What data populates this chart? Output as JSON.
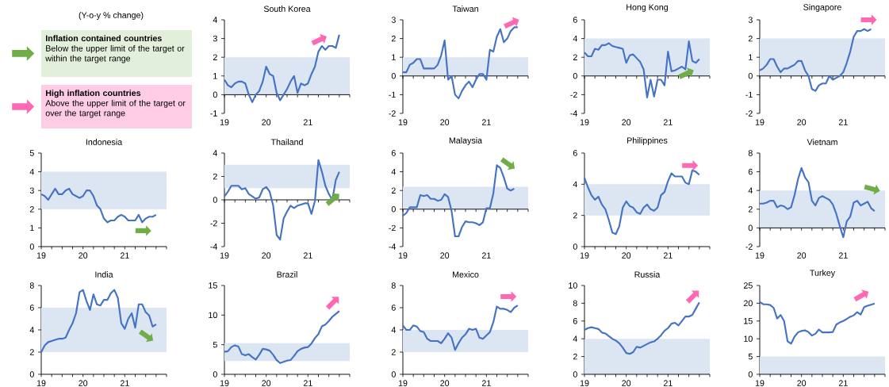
{
  "chart_data": [
    {
      "type": "other",
      "annotations": [
        "(Y-o-y % change)",
        "Inflation contained countries",
        "Below the upper limit of the target or within the target range",
        "High inflation countries",
        "Above the upper limit of the target or over the target range"
      ]
    },
    {
      "type": "line",
      "title": "South Korea",
      "color": "#4472c4",
      "x": [
        "2019-01",
        "2019-02",
        "2019-03",
        "2019-04",
        "2019-05",
        "2019-06",
        "2019-07",
        "2019-08",
        "2019-09",
        "2019-10",
        "2019-11",
        "2019-12",
        "2020-01",
        "2020-02",
        "2020-03",
        "2020-04",
        "2020-05",
        "2020-06",
        "2020-07",
        "2020-08",
        "2020-09",
        "2020-10",
        "2020-11",
        "2020-12",
        "2021-01",
        "2021-02",
        "2021-03",
        "2021-04",
        "2021-05",
        "2021-06",
        "2021-07",
        "2021-08",
        "2021-09",
        "2021-10"
      ],
      "values": [
        0.8,
        0.5,
        0.4,
        0.6,
        0.7,
        0.7,
        0.6,
        0.0,
        -0.4,
        0.0,
        0.2,
        0.7,
        1.5,
        1.1,
        1.0,
        0.1,
        -0.3,
        0.0,
        0.3,
        0.7,
        1.0,
        0.1,
        0.6,
        0.5,
        0.6,
        1.1,
        1.5,
        2.3,
        2.6,
        2.4,
        2.6,
        2.6,
        2.5,
        3.2
      ],
      "xlim": [
        "2019-01",
        "2022-01"
      ],
      "xticks": [
        {
          "value": "2019-01",
          "label": "19"
        },
        {
          "value": "2019-04",
          "label": null
        },
        {
          "value": "2019-07",
          "label": null
        },
        {
          "value": "2019-10",
          "label": null
        },
        {
          "value": "2020-01",
          "label": "20"
        },
        {
          "value": "2020-04",
          "label": null
        },
        {
          "value": "2020-07",
          "label": null
        },
        {
          "value": "2020-10",
          "label": null
        },
        {
          "value": "2021-01",
          "label": "21"
        },
        {
          "value": "2021-04",
          "label": null
        },
        {
          "value": "2021-07",
          "label": null
        },
        {
          "value": "2021-10",
          "label": null
        },
        {
          "value": "2022-01",
          "label": null
        }
      ],
      "ylim": [
        -1,
        4
      ],
      "yticks": [
        -1,
        0,
        1,
        2,
        3,
        4
      ],
      "bands": [
        {
          "axis": "y",
          "from": 0,
          "to": 2,
          "color": "#dce6f2"
        }
      ]
    },
    {
      "type": "line",
      "title": "Taiwan",
      "color": "#4472c4",
      "x": [
        "2019-01",
        "2019-02",
        "2019-03",
        "2019-04",
        "2019-05",
        "2019-06",
        "2019-07",
        "2019-08",
        "2019-09",
        "2019-10",
        "2019-11",
        "2019-12",
        "2020-01",
        "2020-02",
        "2020-03",
        "2020-04",
        "2020-05",
        "2020-06",
        "2020-07",
        "2020-08",
        "2020-09",
        "2020-10",
        "2020-11",
        "2020-12",
        "2021-01",
        "2021-02",
        "2021-03",
        "2021-04",
        "2021-05",
        "2021-06",
        "2021-07",
        "2021-08",
        "2021-09",
        "2021-10"
      ],
      "values": [
        0.2,
        0.2,
        0.6,
        0.7,
        0.9,
        0.9,
        0.4,
        0.4,
        0.4,
        0.4,
        0.6,
        1.1,
        1.9,
        -0.2,
        0.0,
        -1.0,
        -1.2,
        -0.8,
        -0.5,
        -0.3,
        -0.6,
        -0.2,
        0.1,
        0.1,
        -0.2,
        1.4,
        1.3,
        2.1,
        2.5,
        1.8,
        2.0,
        2.4,
        2.6,
        2.6
      ],
      "xlim": [
        "2019-01",
        "2022-01"
      ],
      "xticks": [
        {
          "value": "2019-01",
          "label": "19"
        },
        {
          "value": "2019-04",
          "label": null
        },
        {
          "value": "2019-07",
          "label": null
        },
        {
          "value": "2019-10",
          "label": null
        },
        {
          "value": "2020-01",
          "label": "20"
        },
        {
          "value": "2020-04",
          "label": null
        },
        {
          "value": "2020-07",
          "label": null
        },
        {
          "value": "2020-10",
          "label": null
        },
        {
          "value": "2021-01",
          "label": "21"
        },
        {
          "value": "2021-04",
          "label": null
        },
        {
          "value": "2021-07",
          "label": null
        },
        {
          "value": "2021-10",
          "label": null
        },
        {
          "value": "2022-01",
          "label": null
        }
      ],
      "ylim": [
        -2,
        3
      ],
      "yticks": [
        -2,
        -1,
        0,
        1,
        2,
        3
      ],
      "bands": [
        {
          "axis": "y",
          "from": 0,
          "to": 1,
          "color": "#dce6f2"
        }
      ]
    },
    {
      "type": "line",
      "title": "Hong Kong",
      "color": "#4472c4",
      "x": [
        "2019-01",
        "2019-02",
        "2019-03",
        "2019-04",
        "2019-05",
        "2019-06",
        "2019-07",
        "2019-08",
        "2019-09",
        "2019-10",
        "2019-11",
        "2019-12",
        "2020-01",
        "2020-02",
        "2020-03",
        "2020-04",
        "2020-05",
        "2020-06",
        "2020-07",
        "2020-08",
        "2020-09",
        "2020-10",
        "2020-11",
        "2020-12",
        "2021-01",
        "2021-02",
        "2021-03",
        "2021-04",
        "2021-05",
        "2021-06",
        "2021-07",
        "2021-08",
        "2021-09",
        "2021-10"
      ],
      "values": [
        2.5,
        2.1,
        2.1,
        2.9,
        2.8,
        3.3,
        3.3,
        3.5,
        3.2,
        3.1,
        3.0,
        2.9,
        1.4,
        2.2,
        2.3,
        1.9,
        1.5,
        0.7,
        -2.3,
        -0.4,
        -2.2,
        -0.4,
        -0.4,
        -1.0,
        2.6,
        0.5,
        0.6,
        0.8,
        1.0,
        0.7,
        3.7,
        1.6,
        1.4,
        1.8
      ],
      "xlim": [
        "2019-01",
        "2022-01"
      ],
      "xticks": [
        {
          "value": "2019-01",
          "label": "19"
        },
        {
          "value": "2019-04",
          "label": null
        },
        {
          "value": "2019-07",
          "label": null
        },
        {
          "value": "2019-10",
          "label": null
        },
        {
          "value": "2020-01",
          "label": "20"
        },
        {
          "value": "2020-04",
          "label": null
        },
        {
          "value": "2020-07",
          "label": null
        },
        {
          "value": "2020-10",
          "label": null
        },
        {
          "value": "2021-01",
          "label": "21"
        },
        {
          "value": "2021-04",
          "label": null
        },
        {
          "value": "2021-07",
          "label": null
        },
        {
          "value": "2021-10",
          "label": null
        },
        {
          "value": "2022-01",
          "label": null
        }
      ],
      "ylim": [
        -4,
        6
      ],
      "yticks": [
        -4,
        -2,
        0,
        2,
        4,
        6
      ],
      "bands": [
        {
          "axis": "y",
          "from": 0,
          "to": 4,
          "color": "#dce6f2"
        }
      ]
    },
    {
      "type": "line",
      "title": "Singapore",
      "color": "#4472c4",
      "x": [
        "2019-01",
        "2019-02",
        "2019-03",
        "2019-04",
        "2019-05",
        "2019-06",
        "2019-07",
        "2019-08",
        "2019-09",
        "2019-10",
        "2019-11",
        "2019-12",
        "2020-01",
        "2020-02",
        "2020-03",
        "2020-04",
        "2020-05",
        "2020-06",
        "2020-07",
        "2020-08",
        "2020-09",
        "2020-10",
        "2020-11",
        "2020-12",
        "2021-01",
        "2021-02",
        "2021-03",
        "2021-04",
        "2021-05",
        "2021-06",
        "2021-07",
        "2021-08",
        "2021-09"
      ],
      "values": [
        0.3,
        0.4,
        0.6,
        0.9,
        0.9,
        0.5,
        0.2,
        0.4,
        0.4,
        0.5,
        0.6,
        0.8,
        0.8,
        0.3,
        0.0,
        -0.7,
        -0.8,
        -0.5,
        -0.4,
        -0.4,
        0.0,
        -0.2,
        -0.1,
        0.0,
        0.2,
        0.7,
        1.3,
        2.1,
        2.4,
        2.4,
        2.5,
        2.4,
        2.5
      ],
      "xlim": [
        "2019-01",
        "2022-01"
      ],
      "xticks": [
        {
          "value": "2019-01",
          "label": "19"
        },
        {
          "value": "2019-04",
          "label": null
        },
        {
          "value": "2019-07",
          "label": null
        },
        {
          "value": "2019-10",
          "label": null
        },
        {
          "value": "2020-01",
          "label": "20"
        },
        {
          "value": "2020-04",
          "label": null
        },
        {
          "value": "2020-07",
          "label": null
        },
        {
          "value": "2020-10",
          "label": null
        },
        {
          "value": "2021-01",
          "label": "21"
        },
        {
          "value": "2021-04",
          "label": null
        },
        {
          "value": "2021-07",
          "label": null
        },
        {
          "value": "2021-10",
          "label": null
        },
        {
          "value": "2022-01",
          "label": null
        }
      ],
      "ylim": [
        -2,
        3
      ],
      "yticks": [
        -2,
        -1,
        0,
        1,
        2,
        3
      ],
      "bands": [
        {
          "axis": "y",
          "from": 0,
          "to": 2,
          "color": "#dce6f2"
        }
      ]
    },
    {
      "type": "line",
      "title": "Indonesia",
      "color": "#4472c4",
      "x": [
        "2019-01",
        "2019-02",
        "2019-03",
        "2019-04",
        "2019-05",
        "2019-06",
        "2019-07",
        "2019-08",
        "2019-09",
        "2019-10",
        "2019-11",
        "2019-12",
        "2020-01",
        "2020-02",
        "2020-03",
        "2020-04",
        "2020-05",
        "2020-06",
        "2020-07",
        "2020-08",
        "2020-09",
        "2020-10",
        "2020-11",
        "2020-12",
        "2021-01",
        "2021-02",
        "2021-03",
        "2021-04",
        "2021-05",
        "2021-06",
        "2021-07",
        "2021-08",
        "2021-09",
        "2021-10"
      ],
      "values": [
        2.8,
        2.7,
        2.5,
        2.8,
        3.1,
        2.8,
        2.8,
        3.0,
        3.1,
        2.8,
        2.7,
        2.6,
        2.7,
        3.0,
        3.0,
        2.7,
        2.2,
        2.0,
        1.5,
        1.3,
        1.4,
        1.4,
        1.6,
        1.7,
        1.6,
        1.4,
        1.4,
        1.4,
        1.7,
        1.3,
        1.5,
        1.6,
        1.6,
        1.7
      ],
      "xlim": [
        "2019-01",
        "2022-01"
      ],
      "xticks": [
        {
          "value": "2019-01",
          "label": "19"
        },
        {
          "value": "2019-04",
          "label": null
        },
        {
          "value": "2019-07",
          "label": null
        },
        {
          "value": "2019-10",
          "label": null
        },
        {
          "value": "2020-01",
          "label": "20"
        },
        {
          "value": "2020-04",
          "label": null
        },
        {
          "value": "2020-07",
          "label": null
        },
        {
          "value": "2020-10",
          "label": null
        },
        {
          "value": "2021-01",
          "label": "21"
        },
        {
          "value": "2021-04",
          "label": null
        },
        {
          "value": "2021-07",
          "label": null
        },
        {
          "value": "2021-10",
          "label": null
        },
        {
          "value": "2022-01",
          "label": null
        }
      ],
      "ylim": [
        0,
        5
      ],
      "yticks": [
        0,
        1,
        2,
        3,
        4,
        5
      ],
      "bands": [
        {
          "axis": "y",
          "from": 2,
          "to": 4,
          "color": "#dce6f2"
        }
      ]
    },
    {
      "type": "line",
      "title": "Thailand",
      "color": "#4472c4",
      "x": [
        "2019-01",
        "2019-02",
        "2019-03",
        "2019-04",
        "2019-05",
        "2019-06",
        "2019-07",
        "2019-08",
        "2019-09",
        "2019-10",
        "2019-11",
        "2019-12",
        "2020-01",
        "2020-02",
        "2020-03",
        "2020-04",
        "2020-05",
        "2020-06",
        "2020-07",
        "2020-08",
        "2020-09",
        "2020-10",
        "2020-11",
        "2020-12",
        "2021-01",
        "2021-02",
        "2021-03",
        "2021-04",
        "2021-05",
        "2021-06",
        "2021-07",
        "2021-08",
        "2021-09",
        "2021-10"
      ],
      "values": [
        0.3,
        0.7,
        1.2,
        1.2,
        1.2,
        0.9,
        1.0,
        0.5,
        0.3,
        0.1,
        0.2,
        0.9,
        1.1,
        0.7,
        -0.5,
        -3.0,
        -3.4,
        -1.6,
        -1.0,
        -0.5,
        -0.7,
        -0.5,
        -0.4,
        -0.3,
        -0.3,
        -1.2,
        -0.1,
        3.4,
        2.4,
        1.2,
        0.5,
        0.0,
        1.7,
        2.4
      ],
      "xlim": [
        "2019-01",
        "2022-01"
      ],
      "xticks": [
        {
          "value": "2019-01",
          "label": "19"
        },
        {
          "value": "2019-04",
          "label": null
        },
        {
          "value": "2019-07",
          "label": null
        },
        {
          "value": "2019-10",
          "label": null
        },
        {
          "value": "2020-01",
          "label": "20"
        },
        {
          "value": "2020-04",
          "label": null
        },
        {
          "value": "2020-07",
          "label": null
        },
        {
          "value": "2020-10",
          "label": null
        },
        {
          "value": "2021-01",
          "label": "21"
        },
        {
          "value": "2021-04",
          "label": null
        },
        {
          "value": "2021-07",
          "label": null
        },
        {
          "value": "2021-10",
          "label": null
        },
        {
          "value": "2022-01",
          "label": null
        }
      ],
      "ylim": [
        -4,
        4
      ],
      "yticks": [
        -4,
        -2,
        0,
        2,
        4
      ],
      "bands": [
        {
          "axis": "y",
          "from": 1,
          "to": 3,
          "color": "#dce6f2"
        }
      ]
    },
    {
      "type": "line",
      "title": "Malaysia",
      "color": "#4472c4",
      "x": [
        "2019-01",
        "2019-02",
        "2019-03",
        "2019-04",
        "2019-05",
        "2019-06",
        "2019-07",
        "2019-08",
        "2019-09",
        "2019-10",
        "2019-11",
        "2019-12",
        "2020-01",
        "2020-02",
        "2020-03",
        "2020-04",
        "2020-05",
        "2020-06",
        "2020-07",
        "2020-08",
        "2020-09",
        "2020-10",
        "2020-11",
        "2020-12",
        "2021-01",
        "2021-02",
        "2021-03",
        "2021-04",
        "2021-05",
        "2021-06",
        "2021-07",
        "2021-08",
        "2021-09"
      ],
      "values": [
        -0.7,
        -0.4,
        0.2,
        0.2,
        0.2,
        1.5,
        1.4,
        1.5,
        1.1,
        1.1,
        0.9,
        1.0,
        1.6,
        1.3,
        -0.2,
        -2.9,
        -2.9,
        -1.9,
        -1.3,
        -1.4,
        -1.4,
        -1.5,
        -1.7,
        -1.4,
        0.1,
        0.1,
        1.7,
        4.7,
        4.4,
        3.4,
        2.2,
        2.0,
        2.2
      ],
      "xlim": [
        "2019-01",
        "2022-01"
      ],
      "xticks": [
        {
          "value": "2019-01",
          "label": "19"
        },
        {
          "value": "2019-04",
          "label": null
        },
        {
          "value": "2019-07",
          "label": null
        },
        {
          "value": "2019-10",
          "label": null
        },
        {
          "value": "2020-01",
          "label": "20"
        },
        {
          "value": "2020-04",
          "label": null
        },
        {
          "value": "2020-07",
          "label": null
        },
        {
          "value": "2020-10",
          "label": null
        },
        {
          "value": "2021-01",
          "label": "21"
        },
        {
          "value": "2021-04",
          "label": null
        },
        {
          "value": "2021-07",
          "label": null
        },
        {
          "value": "2021-10",
          "label": null
        },
        {
          "value": "2022-01",
          "label": null
        }
      ],
      "ylim": [
        -4,
        6
      ],
      "yticks": [
        -4,
        -2,
        0,
        2,
        4,
        6
      ],
      "bands": [
        {
          "axis": "y",
          "from": 0,
          "to": 2.4,
          "color": "#dce6f2"
        }
      ]
    },
    {
      "type": "line",
      "title": "Philippines",
      "color": "#4472c4",
      "x": [
        "2019-01",
        "2019-02",
        "2019-03",
        "2019-04",
        "2019-05",
        "2019-06",
        "2019-07",
        "2019-08",
        "2019-09",
        "2019-10",
        "2019-11",
        "2019-12",
        "2020-01",
        "2020-02",
        "2020-03",
        "2020-04",
        "2020-05",
        "2020-06",
        "2020-07",
        "2020-08",
        "2020-09",
        "2020-10",
        "2020-11",
        "2020-12",
        "2021-01",
        "2021-02",
        "2021-03",
        "2021-04",
        "2021-05",
        "2021-06",
        "2021-07",
        "2021-08",
        "2021-09",
        "2021-10"
      ],
      "values": [
        4.4,
        3.8,
        3.3,
        3.0,
        3.2,
        2.7,
        2.4,
        1.7,
        0.9,
        0.8,
        1.3,
        2.5,
        2.9,
        2.6,
        2.5,
        2.2,
        2.1,
        2.5,
        2.7,
        2.4,
        2.3,
        2.5,
        3.3,
        3.5,
        4.2,
        4.7,
        4.5,
        4.5,
        4.5,
        4.1,
        4.0,
        4.9,
        4.8,
        4.6
      ],
      "xlim": [
        "2019-01",
        "2022-01"
      ],
      "xticks": [
        {
          "value": "2019-01",
          "label": "19"
        },
        {
          "value": "2019-04",
          "label": null
        },
        {
          "value": "2019-07",
          "label": null
        },
        {
          "value": "2019-10",
          "label": null
        },
        {
          "value": "2020-01",
          "label": "20"
        },
        {
          "value": "2020-04",
          "label": null
        },
        {
          "value": "2020-07",
          "label": null
        },
        {
          "value": "2020-10",
          "label": null
        },
        {
          "value": "2021-01",
          "label": "21"
        },
        {
          "value": "2021-04",
          "label": null
        },
        {
          "value": "2021-07",
          "label": null
        },
        {
          "value": "2021-10",
          "label": null
        },
        {
          "value": "2022-01",
          "label": null
        }
      ],
      "ylim": [
        0,
        6
      ],
      "yticks": [
        0,
        2,
        4,
        6
      ],
      "bands": [
        {
          "axis": "y",
          "from": 2,
          "to": 4,
          "color": "#dce6f2"
        }
      ]
    },
    {
      "type": "line",
      "title": "Vietnam",
      "color": "#4472c4",
      "x": [
        "2019-01",
        "2019-02",
        "2019-03",
        "2019-04",
        "2019-05",
        "2019-06",
        "2019-07",
        "2019-08",
        "2019-09",
        "2019-10",
        "2019-11",
        "2019-12",
        "2020-01",
        "2020-02",
        "2020-03",
        "2020-04",
        "2020-05",
        "2020-06",
        "2020-07",
        "2020-08",
        "2020-09",
        "2020-10",
        "2020-11",
        "2020-12",
        "2021-01",
        "2021-02",
        "2021-03",
        "2021-04",
        "2021-05",
        "2021-06",
        "2021-07",
        "2021-08",
        "2021-09",
        "2021-10"
      ],
      "values": [
        2.6,
        2.6,
        2.7,
        2.9,
        2.9,
        2.2,
        2.4,
        2.3,
        2.0,
        2.2,
        3.5,
        5.2,
        6.4,
        5.4,
        4.9,
        2.9,
        2.4,
        3.2,
        3.4,
        3.2,
        3.0,
        2.5,
        1.5,
        0.2,
        -1.0,
        0.7,
        1.2,
        2.7,
        2.9,
        2.4,
        2.6,
        2.8,
        2.1,
        1.8
      ],
      "xlim": [
        "2019-01",
        "2022-01"
      ],
      "xticks": [
        {
          "value": "2019-01",
          "label": "19"
        },
        {
          "value": "2019-04",
          "label": null
        },
        {
          "value": "2019-07",
          "label": null
        },
        {
          "value": "2019-10",
          "label": null
        },
        {
          "value": "2020-01",
          "label": "20"
        },
        {
          "value": "2020-04",
          "label": null
        },
        {
          "value": "2020-07",
          "label": null
        },
        {
          "value": "2020-10",
          "label": null
        },
        {
          "value": "2021-01",
          "label": "21"
        },
        {
          "value": "2021-04",
          "label": null
        },
        {
          "value": "2021-07",
          "label": null
        },
        {
          "value": "2021-10",
          "label": null
        },
        {
          "value": "2022-01",
          "label": null
        }
      ],
      "ylim": [
        -2,
        8
      ],
      "yticks": [
        -2,
        0,
        2,
        4,
        6,
        8
      ],
      "bands": [
        {
          "axis": "y",
          "from": 0,
          "to": 4,
          "color": "#dce6f2"
        }
      ]
    },
    {
      "type": "line",
      "title": "India",
      "color": "#4472c4",
      "x": [
        "2019-01",
        "2019-02",
        "2019-03",
        "2019-04",
        "2019-05",
        "2019-06",
        "2019-07",
        "2019-08",
        "2019-09",
        "2019-10",
        "2019-11",
        "2019-12",
        "2020-01",
        "2020-02",
        "2020-03",
        "2020-04",
        "2020-05",
        "2020-06",
        "2020-07",
        "2020-08",
        "2020-09",
        "2020-10",
        "2020-11",
        "2020-12",
        "2021-01",
        "2021-02",
        "2021-03",
        "2021-04",
        "2021-05",
        "2021-06",
        "2021-07",
        "2021-08",
        "2021-09",
        "2021-10"
      ],
      "values": [
        2.0,
        2.6,
        2.9,
        3.0,
        3.1,
        3.2,
        3.2,
        3.3,
        4.0,
        4.6,
        5.5,
        7.4,
        7.6,
        6.6,
        5.8,
        7.2,
        6.3,
        6.2,
        6.7,
        6.7,
        7.3,
        7.6,
        6.9,
        4.6,
        4.1,
        5.0,
        5.5,
        4.2,
        6.3,
        6.3,
        5.6,
        5.3,
        4.3,
        4.5
      ],
      "xlim": [
        "2019-01",
        "2022-01"
      ],
      "xticks": [
        {
          "value": "2019-01",
          "label": "19"
        },
        {
          "value": "2019-04",
          "label": null
        },
        {
          "value": "2019-07",
          "label": null
        },
        {
          "value": "2019-10",
          "label": null
        },
        {
          "value": "2020-01",
          "label": "20"
        },
        {
          "value": "2020-04",
          "label": null
        },
        {
          "value": "2020-07",
          "label": null
        },
        {
          "value": "2020-10",
          "label": null
        },
        {
          "value": "2021-01",
          "label": "21"
        },
        {
          "value": "2021-04",
          "label": null
        },
        {
          "value": "2021-07",
          "label": null
        },
        {
          "value": "2021-10",
          "label": null
        },
        {
          "value": "2022-01",
          "label": null
        }
      ],
      "ylim": [
        0,
        8
      ],
      "yticks": [
        0,
        2,
        4,
        6,
        8
      ],
      "bands": [
        {
          "axis": "y",
          "from": 2,
          "to": 6,
          "color": "#dce6f2"
        }
      ]
    },
    {
      "type": "line",
      "title": "Brazil",
      "color": "#4472c4",
      "x": [
        "2019-01",
        "2019-02",
        "2019-03",
        "2019-04",
        "2019-05",
        "2019-06",
        "2019-07",
        "2019-08",
        "2019-09",
        "2019-10",
        "2019-11",
        "2019-12",
        "2020-01",
        "2020-02",
        "2020-03",
        "2020-04",
        "2020-05",
        "2020-06",
        "2020-07",
        "2020-08",
        "2020-09",
        "2020-10",
        "2020-11",
        "2020-12",
        "2021-01",
        "2021-02",
        "2021-03",
        "2021-04",
        "2021-05",
        "2021-06",
        "2021-07",
        "2021-08",
        "2021-09",
        "2021-10"
      ],
      "values": [
        3.8,
        3.9,
        4.6,
        4.9,
        4.7,
        3.4,
        3.2,
        3.4,
        2.9,
        2.5,
        3.3,
        4.3,
        4.2,
        4.0,
        3.3,
        2.4,
        1.9,
        2.1,
        2.3,
        2.4,
        3.1,
        3.9,
        4.3,
        4.5,
        4.6,
        5.2,
        6.1,
        6.8,
        8.1,
        8.4,
        9.0,
        9.7,
        10.2,
        10.7
      ],
      "xlim": [
        "2019-01",
        "2022-01"
      ],
      "xticks": [
        {
          "value": "2019-01",
          "label": "19"
        },
        {
          "value": "2019-04",
          "label": null
        },
        {
          "value": "2019-07",
          "label": null
        },
        {
          "value": "2019-10",
          "label": null
        },
        {
          "value": "2020-01",
          "label": "20"
        },
        {
          "value": "2020-04",
          "label": null
        },
        {
          "value": "2020-07",
          "label": null
        },
        {
          "value": "2020-10",
          "label": null
        },
        {
          "value": "2021-01",
          "label": "21"
        },
        {
          "value": "2021-04",
          "label": null
        },
        {
          "value": "2021-07",
          "label": null
        },
        {
          "value": "2021-10",
          "label": null
        },
        {
          "value": "2022-01",
          "label": null
        }
      ],
      "ylim": [
        0,
        15
      ],
      "yticks": [
        0,
        5,
        10,
        15
      ],
      "bands": [
        {
          "axis": "y",
          "from": 2.25,
          "to": 5.25,
          "color": "#dce6f2"
        }
      ]
    },
    {
      "type": "line",
      "title": "Mexico",
      "color": "#4472c4",
      "x": [
        "2019-01",
        "2019-02",
        "2019-03",
        "2019-04",
        "2019-05",
        "2019-06",
        "2019-07",
        "2019-08",
        "2019-09",
        "2019-10",
        "2019-11",
        "2019-12",
        "2020-01",
        "2020-02",
        "2020-03",
        "2020-04",
        "2020-05",
        "2020-06",
        "2020-07",
        "2020-08",
        "2020-09",
        "2020-10",
        "2020-11",
        "2020-12",
        "2021-01",
        "2021-02",
        "2021-03",
        "2021-04",
        "2021-05",
        "2021-06",
        "2021-07",
        "2021-08",
        "2021-09",
        "2021-10"
      ],
      "values": [
        4.4,
        4.0,
        4.0,
        4.4,
        4.3,
        3.9,
        3.8,
        3.2,
        3.0,
        3.0,
        3.0,
        2.8,
        3.2,
        3.7,
        3.3,
        2.2,
        2.8,
        3.3,
        3.6,
        4.1,
        4.0,
        4.1,
        3.3,
        3.2,
        3.5,
        3.8,
        4.7,
        6.1,
        5.9,
        5.9,
        5.8,
        5.6,
        6.0,
        6.2
      ],
      "xlim": [
        "2019-01",
        "2022-01"
      ],
      "xticks": [
        {
          "value": "2019-01",
          "label": "19"
        },
        {
          "value": "2019-04",
          "label": null
        },
        {
          "value": "2019-07",
          "label": null
        },
        {
          "value": "2019-10",
          "label": null
        },
        {
          "value": "2020-01",
          "label": "20"
        },
        {
          "value": "2020-04",
          "label": null
        },
        {
          "value": "2020-07",
          "label": null
        },
        {
          "value": "2020-10",
          "label": null
        },
        {
          "value": "2021-01",
          "label": "21"
        },
        {
          "value": "2021-04",
          "label": null
        },
        {
          "value": "2021-07",
          "label": null
        },
        {
          "value": "2021-10",
          "label": null
        },
        {
          "value": "2022-01",
          "label": null
        }
      ],
      "ylim": [
        0,
        8
      ],
      "yticks": [
        0,
        2,
        4,
        6,
        8
      ],
      "bands": [
        {
          "axis": "y",
          "from": 2,
          "to": 4,
          "color": "#dce6f2"
        }
      ]
    },
    {
      "type": "line",
      "title": "Russia",
      "color": "#4472c4",
      "x": [
        "2019-01",
        "2019-02",
        "2019-03",
        "2019-04",
        "2019-05",
        "2019-06",
        "2019-07",
        "2019-08",
        "2019-09",
        "2019-10",
        "2019-11",
        "2019-12",
        "2020-01",
        "2020-02",
        "2020-03",
        "2020-04",
        "2020-05",
        "2020-06",
        "2020-07",
        "2020-08",
        "2020-09",
        "2020-10",
        "2020-11",
        "2020-12",
        "2021-01",
        "2021-02",
        "2021-03",
        "2021-04",
        "2021-05",
        "2021-06",
        "2021-07",
        "2021-08",
        "2021-09",
        "2021-10"
      ],
      "values": [
        5.0,
        5.2,
        5.3,
        5.2,
        5.1,
        4.7,
        4.6,
        4.3,
        4.0,
        3.8,
        3.5,
        3.0,
        2.4,
        2.3,
        2.5,
        3.1,
        3.0,
        3.2,
        3.4,
        3.6,
        3.7,
        4.0,
        4.4,
        4.9,
        5.2,
        5.7,
        5.8,
        5.5,
        6.0,
        6.5,
        6.5,
        6.7,
        7.4,
        8.1
      ],
      "xlim": [
        "2019-01",
        "2022-01"
      ],
      "xticks": [
        {
          "value": "2019-01",
          "label": "19"
        },
        {
          "value": "2019-04",
          "label": null
        },
        {
          "value": "2019-07",
          "label": null
        },
        {
          "value": "2019-10",
          "label": null
        },
        {
          "value": "2020-01",
          "label": "20"
        },
        {
          "value": "2020-04",
          "label": null
        },
        {
          "value": "2020-07",
          "label": null
        },
        {
          "value": "2020-10",
          "label": null
        },
        {
          "value": "2021-01",
          "label": "21"
        },
        {
          "value": "2021-04",
          "label": null
        },
        {
          "value": "2021-07",
          "label": null
        },
        {
          "value": "2021-10",
          "label": null
        },
        {
          "value": "2022-01",
          "label": null
        }
      ],
      "ylim": [
        0,
        10
      ],
      "yticks": [
        0,
        2,
        4,
        6,
        8,
        10
      ],
      "bands": [
        {
          "axis": "y",
          "from": 0,
          "to": 4,
          "color": "#dce6f2"
        }
      ]
    },
    {
      "type": "line",
      "title": "Turkey",
      "color": "#4472c4",
      "x": [
        "2019-01",
        "2019-02",
        "2019-03",
        "2019-04",
        "2019-05",
        "2019-06",
        "2019-07",
        "2019-08",
        "2019-09",
        "2019-10",
        "2019-11",
        "2019-12",
        "2020-01",
        "2020-02",
        "2020-03",
        "2020-04",
        "2020-05",
        "2020-06",
        "2020-07",
        "2020-08",
        "2020-09",
        "2020-10",
        "2020-11",
        "2020-12",
        "2021-01",
        "2021-02",
        "2021-03",
        "2021-04",
        "2021-05",
        "2021-06",
        "2021-07",
        "2021-08",
        "2021-09",
        "2021-10"
      ],
      "values": [
        20.4,
        19.7,
        19.7,
        19.5,
        18.7,
        15.7,
        16.7,
        15.0,
        9.3,
        8.6,
        10.6,
        11.8,
        12.2,
        12.4,
        11.9,
        10.9,
        11.4,
        12.6,
        11.8,
        11.8,
        11.8,
        11.9,
        14.0,
        14.6,
        15.0,
        15.6,
        16.2,
        16.6,
        17.5,
        16.8,
        18.9,
        19.3,
        19.6,
        19.9
      ],
      "xlim": [
        "2019-01",
        "2022-01"
      ],
      "xticks": [
        {
          "value": "2019-01",
          "label": "19"
        },
        {
          "value": "2019-04",
          "label": null
        },
        {
          "value": "2019-07",
          "label": null
        },
        {
          "value": "2019-10",
          "label": null
        },
        {
          "value": "2020-01",
          "label": "20"
        },
        {
          "value": "2020-04",
          "label": null
        },
        {
          "value": "2020-07",
          "label": null
        },
        {
          "value": "2020-10",
          "label": null
        },
        {
          "value": "2021-01",
          "label": "21"
        },
        {
          "value": "2021-04",
          "label": null
        },
        {
          "value": "2021-07",
          "label": null
        },
        {
          "value": "2021-10",
          "label": null
        },
        {
          "value": "2022-01",
          "label": null
        }
      ],
      "ylim": [
        0,
        25
      ],
      "yticks": [
        0,
        5,
        10,
        15,
        20,
        25
      ],
      "bands": [
        {
          "axis": "y",
          "from": 0,
          "to": 5,
          "color": "#dce6f2"
        }
      ]
    }
  ]
}
